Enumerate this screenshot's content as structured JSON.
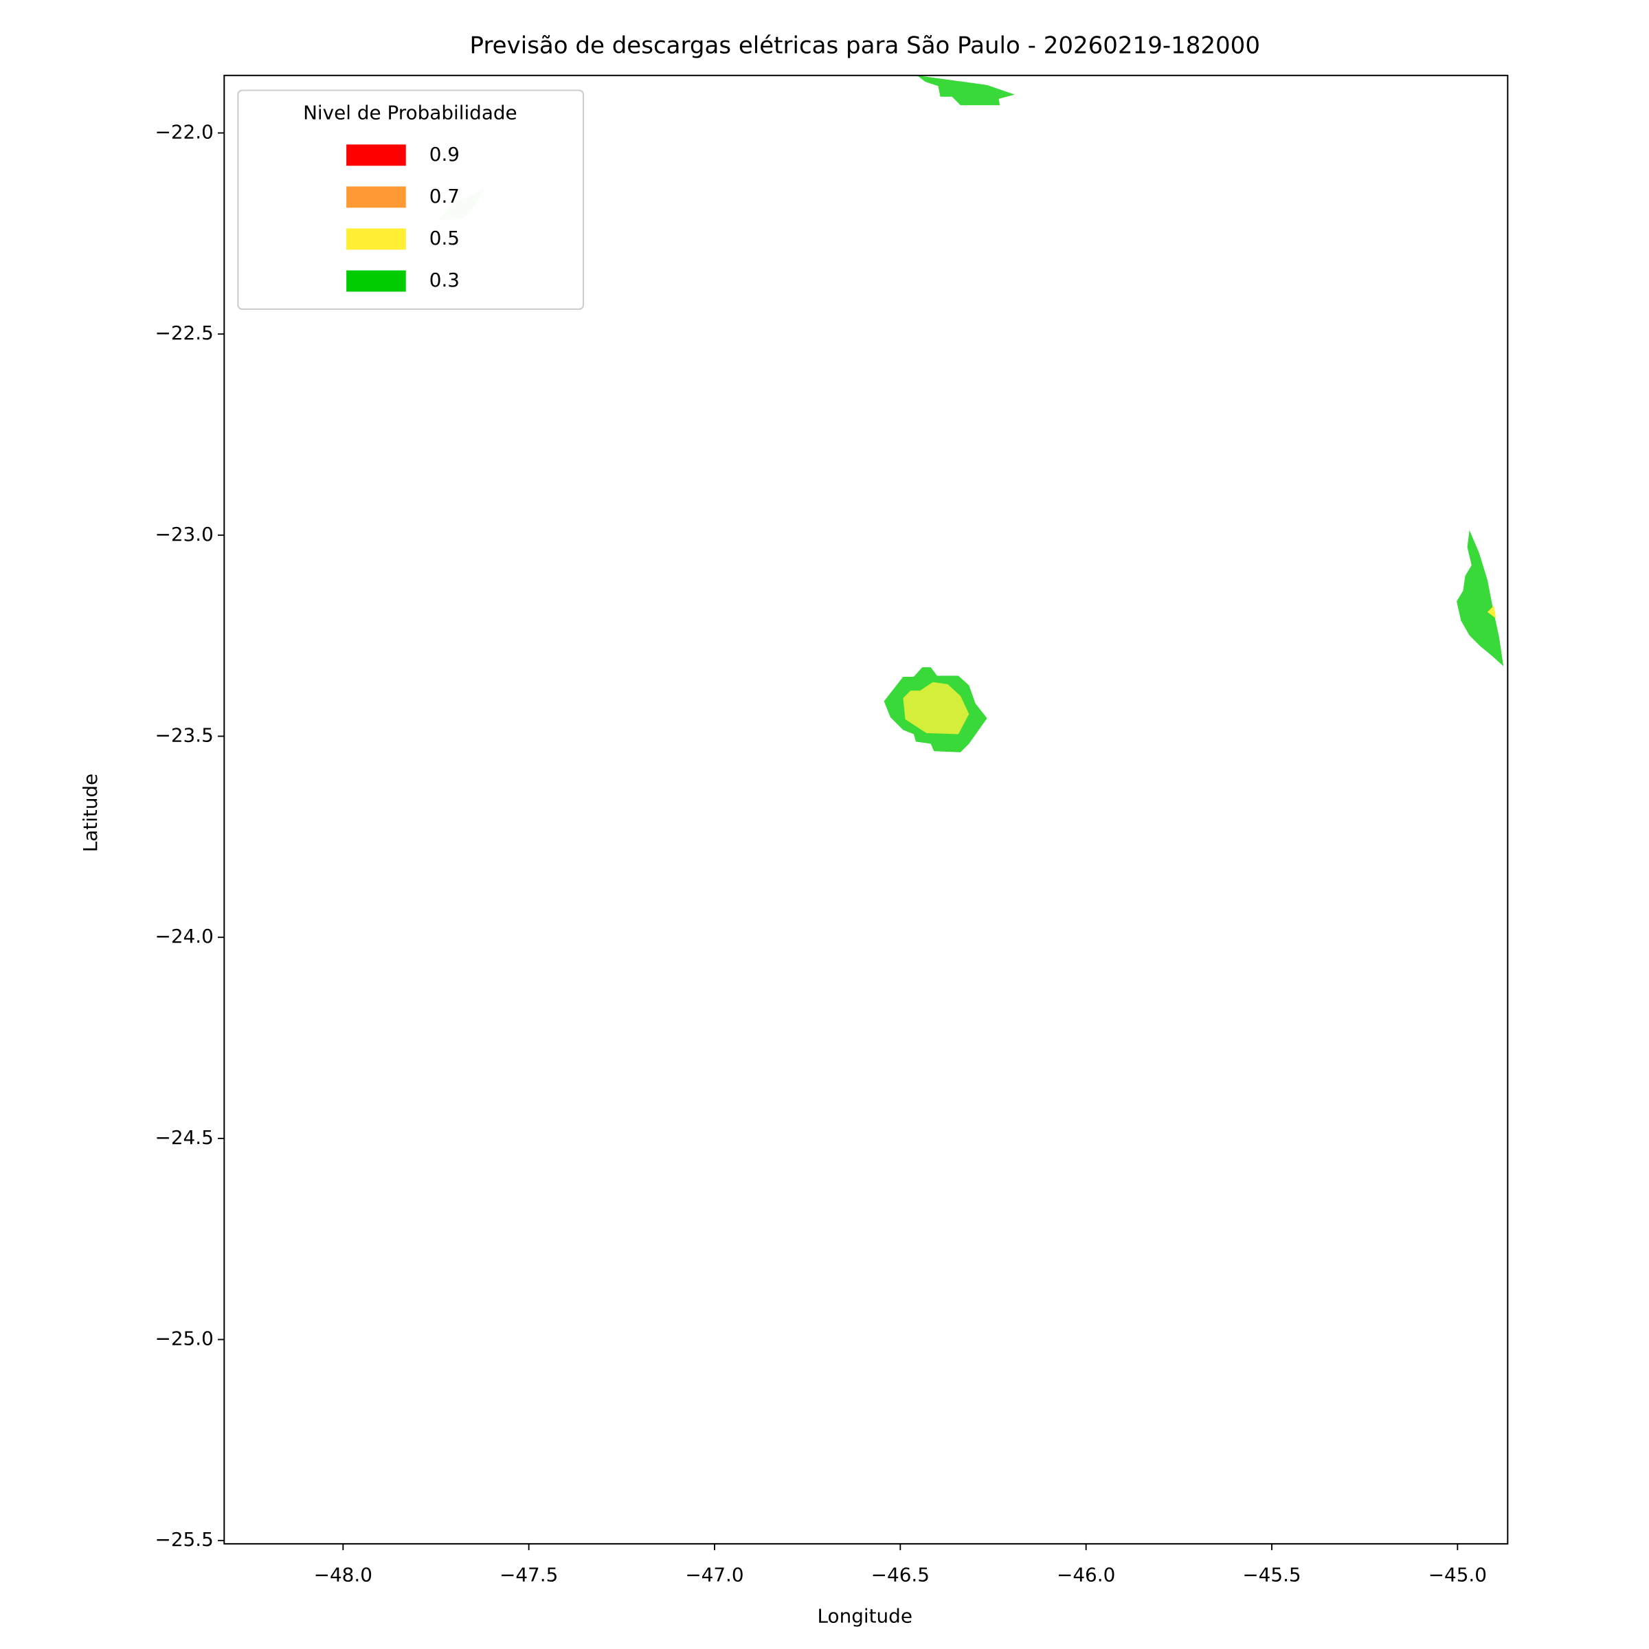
{
  "chart_data": {
    "type": "contour",
    "title": "Previsão de descargas elétricas para São Paulo - 20260219-182000",
    "x_label": "Longitude",
    "y_label": "Latitude",
    "xlim": [
      -48.32,
      -44.865
    ],
    "ylim": [
      -25.508,
      -21.857
    ],
    "xticks": [
      {
        "value": -48.0,
        "label": "−48.0"
      },
      {
        "value": -47.5,
        "label": "−47.5"
      },
      {
        "value": -47.0,
        "label": "−47.0"
      },
      {
        "value": -46.5,
        "label": "−46.5"
      },
      {
        "value": -46.0,
        "label": "−46.0"
      },
      {
        "value": -45.5,
        "label": "−45.5"
      },
      {
        "value": -45.0,
        "label": "−45.0"
      }
    ],
    "yticks": [
      {
        "value": -22.0,
        "label": "−22.0"
      },
      {
        "value": -22.5,
        "label": "−22.5"
      },
      {
        "value": -23.0,
        "label": "−23.0"
      },
      {
        "value": -23.5,
        "label": "−23.5"
      },
      {
        "value": -24.0,
        "label": "−24.0"
      },
      {
        "value": -24.5,
        "label": "−24.5"
      },
      {
        "value": -25.0,
        "label": "−25.0"
      },
      {
        "value": -25.5,
        "label": "−25.5"
      }
    ],
    "legend": {
      "title": "Nivel de Probabilidade",
      "position": "upper left",
      "levels": [
        0.9,
        0.7,
        0.5,
        0.3
      ],
      "colors": [
        "#ff0000",
        "#ff9933",
        "#ffee33",
        "#00cc00"
      ]
    }
  }
}
